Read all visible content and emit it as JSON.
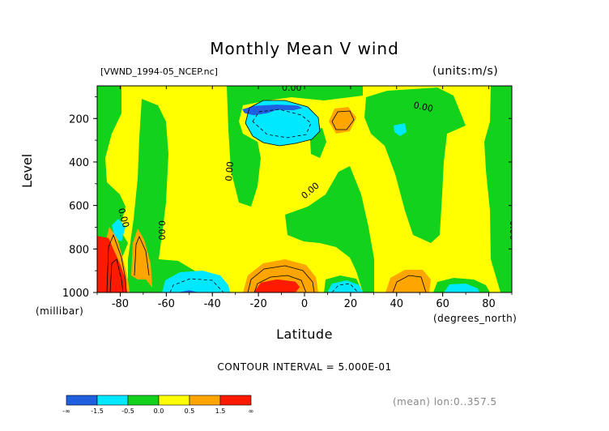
{
  "chart_data": {
    "type": "heatmap",
    "title": "Monthly Mean V wind",
    "dataset_label": "[VWND_1994-05_NCEP.nc]",
    "units_label": "(units:m/s)",
    "xlabel": "Latitude",
    "xunit": "(degrees_north)",
    "ylabel": "Level",
    "yunit": "(millibar)",
    "x_ticks": [
      "-80",
      "-60",
      "-40",
      "-20",
      "0",
      "20",
      "40",
      "60",
      "80"
    ],
    "y_ticks": [
      "200",
      "400",
      "600",
      "800",
      "1000"
    ],
    "xlim": [
      -90,
      90
    ],
    "ylim": [
      1000,
      50
    ],
    "contour_interval": "CONTOUR INTERVAL = 5.000E-01",
    "contour_labels": [
      "0.00",
      "0.00",
      "0.00",
      "0.00",
      "0.00",
      "0.00",
      "0.00"
    ],
    "colorbar": {
      "labels": [
        "-∞",
        "-1.5",
        "-0.5",
        "0.0",
        "0.5",
        "1.5",
        "∞"
      ],
      "colors": [
        "#1f5fe0",
        "#00e8ff",
        "#12d21c",
        "#ffff00",
        "#ffa500",
        "#ff1a00"
      ]
    },
    "footnote": "(mean) lon:0..357.5",
    "regions": [
      {
        "value": -2,
        "color": "#1f5fe0",
        "pts": [
          [
            -12,
            160
          ],
          [
            -16,
            175
          ],
          [
            -22,
            185
          ],
          [
            -26,
            175
          ],
          [
            -27,
            158
          ],
          [
            -22,
            142
          ],
          [
            -12,
            136
          ],
          [
            -3,
            140
          ],
          [
            -1,
            152
          ],
          [
            -5,
            162
          ]
        ]
      },
      {
        "value": -2,
        "color": "#1f5fe0",
        "pts": [
          [
            -55,
            1000
          ],
          [
            -46,
            1000
          ],
          [
            -50,
            990
          ]
        ]
      },
      {
        "value": 3,
        "color": "#ff1a00",
        "pts": [
          [
            -90,
            740
          ],
          [
            -85,
            750
          ],
          [
            -83,
            800
          ],
          [
            -80,
            870
          ],
          [
            -78,
            930
          ],
          [
            -77,
            1000
          ],
          [
            -90,
            1000
          ]
        ]
      },
      {
        "value": 3,
        "color": "#ff1a00",
        "pts": [
          [
            -22,
            1000
          ],
          [
            -19,
            955
          ],
          [
            -12,
            940
          ],
          [
            -4,
            950
          ],
          [
            -2,
            975
          ],
          [
            -4,
            1000
          ]
        ]
      }
    ]
  }
}
